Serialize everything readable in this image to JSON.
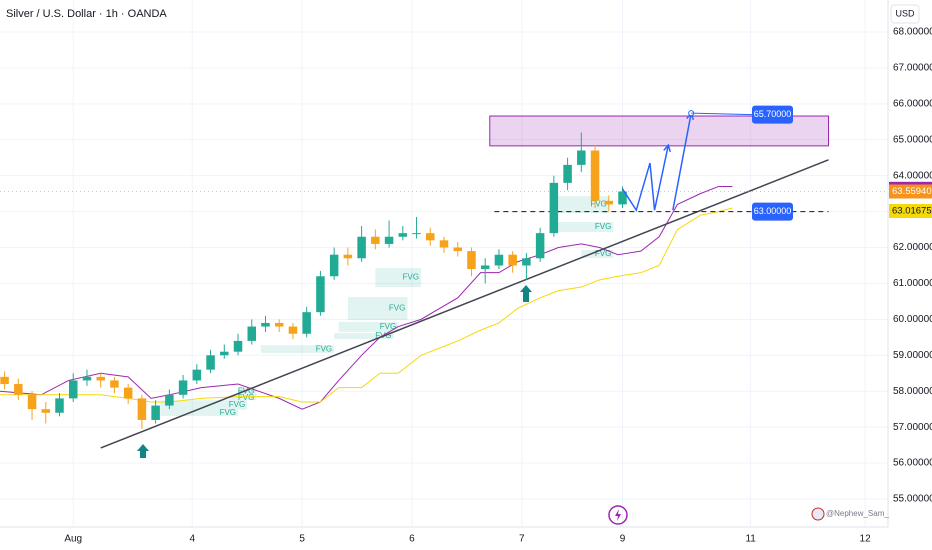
{
  "chart_data": {
    "type": "candlestick",
    "title": "Silver / U.S. Dollar · 1h · OANDA",
    "currency": "USD",
    "watermark": "@Nephew_Sam_",
    "up_color": "#22ab94",
    "down_color": "#f7a21b",
    "grid": true,
    "xlim": [
      0,
      194
    ],
    "ylim": [
      54.22,
      68.89
    ],
    "xticks": [
      {
        "value": 16,
        "label": "Aug"
      },
      {
        "value": 42,
        "label": "4"
      },
      {
        "value": 66,
        "label": "5"
      },
      {
        "value": 90,
        "label": "6"
      },
      {
        "value": 114,
        "label": "7"
      },
      {
        "value": 136,
        "label": "9"
      },
      {
        "value": 164,
        "label": "11"
      },
      {
        "value": 189,
        "label": "12"
      }
    ],
    "yticks": [
      {
        "value": 68,
        "label": "68.00000"
      },
      {
        "value": 67,
        "label": "67.00000"
      },
      {
        "value": 66,
        "label": "66.00000"
      },
      {
        "value": 65,
        "label": "65.00000"
      },
      {
        "value": 64,
        "label": "64.00000"
      },
      {
        "value": 63,
        "label": "63.00000"
      },
      {
        "value": 62,
        "label": "62.00000"
      },
      {
        "value": 61,
        "label": "61.00000"
      },
      {
        "value": 60,
        "label": "60.00000"
      },
      {
        "value": 59,
        "label": "59.00000"
      },
      {
        "value": 58,
        "label": "58.00000"
      },
      {
        "value": 57,
        "label": "57.00000"
      },
      {
        "value": 56,
        "label": "56.00000"
      },
      {
        "value": 55,
        "label": "55.00000"
      }
    ],
    "x": [
      1,
      4,
      7,
      10,
      13,
      16,
      19,
      22,
      25,
      28,
      31,
      34,
      37,
      40,
      43,
      46,
      49,
      52,
      55,
      58,
      61,
      64,
      67,
      70,
      73,
      76,
      79,
      82,
      85,
      88,
      91,
      94,
      97,
      100,
      103,
      106,
      109,
      112,
      115,
      118,
      121,
      124,
      127,
      130,
      133,
      136
    ],
    "open": [
      58.4,
      58.2,
      57.9,
      57.5,
      57.4,
      57.8,
      58.3,
      58.4,
      58.3,
      58.1,
      57.8,
      57.2,
      57.6,
      57.9,
      58.3,
      58.6,
      59.0,
      59.1,
      59.4,
      59.8,
      59.9,
      59.8,
      59.6,
      60.2,
      61.2,
      61.8,
      61.7,
      62.3,
      62.1,
      62.3,
      62.4,
      62.4,
      62.2,
      62.0,
      61.9,
      61.4,
      61.5,
      61.8,
      61.5,
      61.7,
      62.4,
      63.8,
      64.3,
      64.7,
      63.3,
      63.2
    ],
    "high": [
      58.55,
      58.35,
      58.0,
      57.7,
      57.95,
      58.5,
      58.6,
      58.5,
      58.4,
      58.2,
      57.9,
      57.75,
      58.05,
      58.45,
      58.75,
      59.15,
      59.3,
      59.6,
      60.0,
      60.1,
      60.0,
      59.9,
      60.35,
      61.35,
      62.0,
      62.0,
      62.6,
      62.5,
      62.75,
      62.6,
      62.85,
      62.55,
      62.3,
      62.15,
      62.0,
      61.7,
      61.95,
      61.9,
      61.85,
      62.55,
      64.0,
      64.5,
      65.2,
      64.85,
      63.45,
      63.7
    ],
    "low": [
      58.05,
      57.75,
      57.2,
      57.1,
      57.3,
      57.7,
      58.15,
      58.1,
      57.95,
      57.65,
      56.95,
      57.1,
      57.5,
      57.8,
      58.2,
      58.5,
      58.9,
      59.0,
      59.3,
      59.65,
      59.65,
      59.45,
      59.5,
      60.1,
      61.1,
      61.5,
      61.6,
      61.95,
      62.0,
      62.2,
      62.25,
      62.05,
      61.85,
      61.75,
      61.2,
      61.0,
      61.4,
      61.3,
      61.1,
      61.6,
      62.3,
      63.6,
      64.1,
      63.1,
      63.0,
      63.1
    ],
    "close": [
      58.2,
      57.9,
      57.5,
      57.4,
      57.8,
      58.3,
      58.4,
      58.3,
      58.1,
      57.8,
      57.2,
      57.6,
      57.9,
      58.3,
      58.6,
      59.0,
      59.1,
      59.4,
      59.8,
      59.9,
      59.8,
      59.6,
      60.2,
      61.2,
      61.8,
      61.7,
      62.3,
      62.1,
      62.3,
      62.4,
      62.4,
      62.2,
      62.0,
      61.9,
      61.4,
      61.5,
      61.8,
      61.5,
      61.7,
      62.4,
      63.8,
      64.3,
      64.7,
      63.3,
      63.2,
      63.56
    ],
    "indicator_x": [
      0,
      9,
      15,
      22,
      28,
      33,
      37,
      44,
      52,
      61,
      66,
      70,
      74,
      79,
      83,
      87,
      92,
      96,
      100,
      105,
      109,
      113,
      118,
      122,
      127,
      131,
      135,
      140,
      144,
      148,
      153,
      157,
      160
    ],
    "lines": [
      {
        "color": "#9c27b0",
        "values": [
          58.0,
          57.9,
          58.3,
          58.5,
          58.4,
          57.8,
          57.9,
          58.1,
          58.2,
          57.8,
          57.5,
          57.7,
          58.3,
          59.0,
          59.5,
          59.8,
          60.0,
          60.3,
          60.6,
          61.3,
          61.3,
          61.6,
          61.8,
          62.0,
          62.1,
          62.0,
          61.8,
          61.9,
          62.3,
          63.2,
          63.5,
          63.7,
          63.7
        ]
      },
      {
        "color": "#f5d90a",
        "values": [
          57.9,
          57.9,
          57.9,
          57.9,
          57.8,
          57.7,
          57.7,
          57.8,
          57.85,
          57.85,
          57.7,
          57.7,
          58.1,
          58.1,
          58.5,
          58.5,
          59.0,
          59.2,
          59.4,
          59.7,
          59.9,
          60.3,
          60.6,
          60.8,
          60.9,
          61.1,
          61.2,
          61.3,
          61.5,
          62.5,
          62.9,
          63.0,
          63.1
        ]
      }
    ],
    "trendline": {
      "color": "#434651",
      "x": [
        22,
        181
      ],
      "values": [
        56.42,
        64.44
      ]
    },
    "zone": {
      "color": "#9c27b0",
      "x": [
        107,
        181
      ],
      "values": [
        64.83,
        65.66
      ]
    },
    "level": {
      "value": 63,
      "label": "63.00000",
      "x": [
        108,
        181
      ]
    },
    "projection": {
      "color": "#2962ff",
      "paths": [
        {
          "x": [
            136,
            139,
            142,
            143,
            146
          ],
          "values": [
            63.63,
            63.04,
            64.35,
            63.04,
            64.85
          ]
        },
        {
          "x": [
            147,
            151
          ],
          "values": [
            63.04,
            65.74
          ]
        }
      ]
    },
    "target": {
      "value": 65.7,
      "label": "65.70000"
    },
    "fvg": [
      {
        "x": [
          82,
          92
        ],
        "values": [
          60.9,
          61.43
        ],
        "label": "FVG"
      },
      {
        "x": [
          76,
          89
        ],
        "values": [
          59.98,
          60.62
        ],
        "label": "FVG"
      },
      {
        "x": [
          74,
          87
        ],
        "values": [
          59.65,
          59.93
        ],
        "label": "FVG"
      },
      {
        "x": [
          73,
          86
        ],
        "values": [
          59.45,
          59.62
        ],
        "label": "FVG"
      },
      {
        "x": [
          57,
          73
        ],
        "values": [
          59.06,
          59.28
        ],
        "label": "FVG"
      },
      {
        "x": [
          52,
          56
        ],
        "values": [
          57.89,
          58.09
        ],
        "label": "FVG"
      },
      {
        "x": [
          50,
          56
        ],
        "values": [
          57.75,
          57.89
        ],
        "label": "FVG"
      },
      {
        "x": [
          35,
          54
        ],
        "values": [
          57.48,
          57.75
        ],
        "label": "FVG"
      },
      {
        "x": [
          35,
          52
        ],
        "values": [
          57.31,
          57.48
        ],
        "label": "FVG"
      },
      {
        "x": [
          121,
          133
        ],
        "values": [
          62.96,
          63.43
        ],
        "label": "FVG"
      },
      {
        "x": [
          120,
          134
        ],
        "values": [
          62.43,
          62.71
        ],
        "label": "FVG"
      },
      {
        "x": [
          127,
          134
        ],
        "values": [
          61.71,
          61.93
        ],
        "label": "FVG"
      }
    ],
    "price_markers": [
      {
        "value": 63.63413,
        "color": "#9c27b0"
      },
      {
        "value": 63.5594,
        "label": "63.55940",
        "color": "#f7931a"
      },
      {
        "value": 63.01675,
        "color": "#f5d90a"
      }
    ]
  }
}
